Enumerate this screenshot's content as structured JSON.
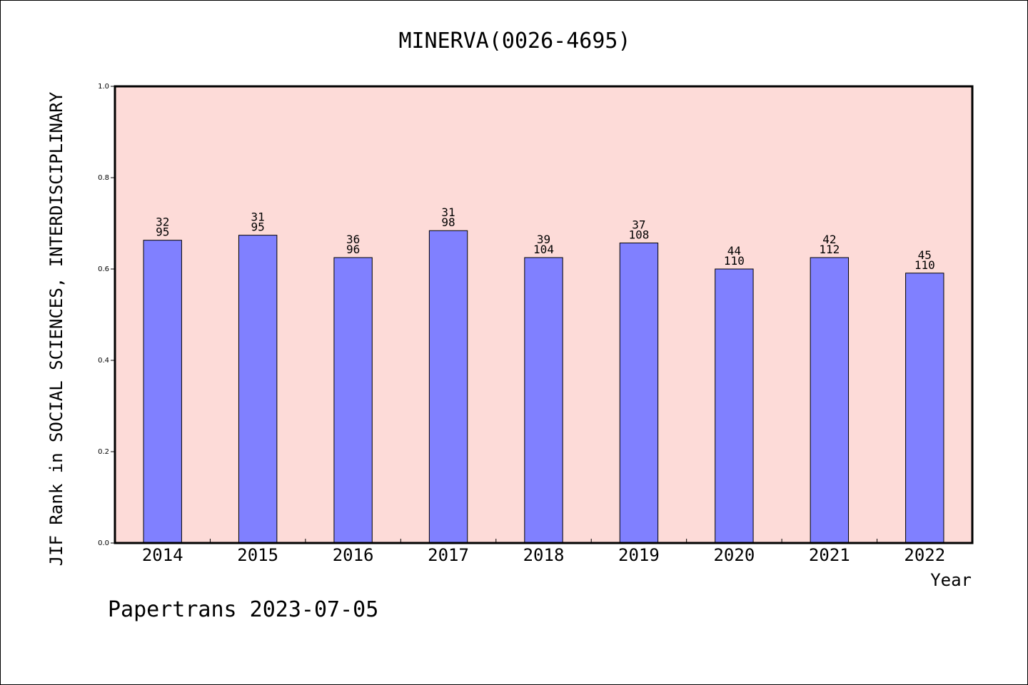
{
  "chart_data": {
    "type": "bar",
    "title": "MINERVA(0026-4695)",
    "xlabel": "Year",
    "ylabel": "JIF Rank in SOCIAL SCIENCES, INTERDISCIPLINARY",
    "ylim": [
      0,
      1.0
    ],
    "yticks": [
      "0.0",
      "0.2",
      "0.4",
      "0.6",
      "0.8",
      "1.0"
    ],
    "categories": [
      "2014",
      "2015",
      "2016",
      "2017",
      "2018",
      "2019",
      "2020",
      "2021",
      "2022"
    ],
    "values": [
      0.663,
      0.674,
      0.625,
      0.684,
      0.625,
      0.657,
      0.6,
      0.625,
      0.591
    ],
    "labels_rank": [
      "32",
      "31",
      "36",
      "31",
      "39",
      "37",
      "44",
      "42",
      "45"
    ],
    "labels_total": [
      "95",
      "95",
      "96",
      "98",
      "104",
      "108",
      "110",
      "112",
      "110"
    ],
    "colors": {
      "plot_background": "#fddbd8",
      "bar_fill": "#8080ff",
      "bar_stroke": "#000000"
    },
    "grid": false
  },
  "footer": {
    "text": "Papertrans 2023-07-05"
  }
}
